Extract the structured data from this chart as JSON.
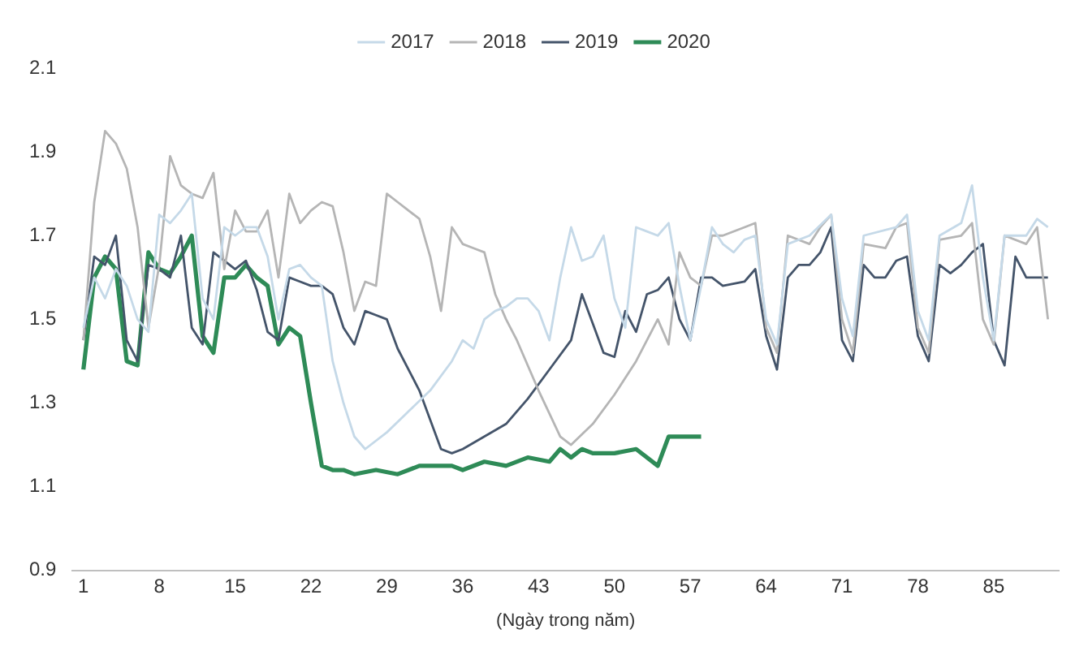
{
  "chart_data": {
    "type": "line",
    "xlabel": "(Ngày trong năm)",
    "xlim": [
      0,
      91
    ],
    "xticks": [
      1,
      8,
      15,
      22,
      29,
      36,
      43,
      50,
      57,
      64,
      71,
      78,
      85
    ],
    "ylim": [
      0.9,
      2.1
    ],
    "yticks": [
      0.9,
      1.1,
      1.3,
      1.5,
      1.7,
      1.9,
      2.1
    ],
    "grid": false,
    "legend": "top",
    "marker": "none",
    "line_style": "solid",
    "series": [
      {
        "name": "2017",
        "color": "#c5d9e8",
        "x": [
          1,
          2,
          3,
          4,
          5,
          6,
          7,
          8,
          9,
          10,
          11,
          12,
          13,
          14,
          15,
          16,
          17,
          18,
          19,
          20,
          21,
          22,
          23,
          24,
          25,
          26,
          27,
          29,
          31,
          33,
          35,
          36,
          37,
          38,
          39,
          40,
          41,
          42,
          43,
          44,
          45,
          46,
          47,
          48,
          49,
          50,
          51,
          52,
          53,
          54,
          55,
          56,
          57,
          58,
          59,
          60,
          61,
          62,
          63,
          64,
          65,
          66,
          68,
          70,
          71,
          72,
          73,
          76,
          77,
          78,
          79,
          80,
          82,
          83,
          84,
          85,
          86,
          88,
          89,
          90
        ],
        "values": [
          1.48,
          1.6,
          1.55,
          1.62,
          1.58,
          1.5,
          1.47,
          1.75,
          1.73,
          1.76,
          1.8,
          1.55,
          1.5,
          1.72,
          1.7,
          1.72,
          1.72,
          1.65,
          1.5,
          1.62,
          1.63,
          1.6,
          1.58,
          1.4,
          1.3,
          1.22,
          1.19,
          1.23,
          1.28,
          1.33,
          1.4,
          1.45,
          1.43,
          1.5,
          1.52,
          1.53,
          1.55,
          1.55,
          1.52,
          1.45,
          1.6,
          1.72,
          1.64,
          1.65,
          1.7,
          1.55,
          1.48,
          1.72,
          1.71,
          1.7,
          1.73,
          1.58,
          1.45,
          1.58,
          1.72,
          1.68,
          1.66,
          1.69,
          1.7,
          1.5,
          1.44,
          1.68,
          1.7,
          1.75,
          1.55,
          1.46,
          1.7,
          1.72,
          1.75,
          1.52,
          1.45,
          1.7,
          1.73,
          1.82,
          1.6,
          1.45,
          1.7,
          1.7,
          1.74,
          1.72
        ]
      },
      {
        "name": "2018",
        "color": "#b5b5b5",
        "x": [
          1,
          2,
          3,
          4,
          5,
          6,
          7,
          8,
          9,
          10,
          11,
          12,
          13,
          14,
          15,
          16,
          17,
          18,
          19,
          20,
          21,
          22,
          23,
          24,
          25,
          26,
          27,
          28,
          29,
          30,
          31,
          32,
          33,
          34,
          35,
          36,
          37,
          38,
          39,
          40,
          41,
          43,
          45,
          46,
          48,
          50,
          52,
          54,
          55,
          56,
          57,
          58,
          59,
          60,
          62,
          63,
          64,
          65,
          66,
          68,
          69,
          70,
          71,
          72,
          73,
          75,
          76,
          77,
          78,
          79,
          80,
          82,
          83,
          84,
          85,
          86,
          88,
          89,
          90
        ],
        "values": [
          1.45,
          1.78,
          1.95,
          1.92,
          1.86,
          1.72,
          1.48,
          1.63,
          1.89,
          1.82,
          1.8,
          1.79,
          1.85,
          1.62,
          1.76,
          1.71,
          1.71,
          1.76,
          1.6,
          1.8,
          1.73,
          1.76,
          1.78,
          1.77,
          1.66,
          1.52,
          1.59,
          1.58,
          1.8,
          1.78,
          1.76,
          1.74,
          1.65,
          1.52,
          1.72,
          1.68,
          1.67,
          1.66,
          1.56,
          1.5,
          1.45,
          1.33,
          1.22,
          1.2,
          1.25,
          1.32,
          1.4,
          1.5,
          1.44,
          1.66,
          1.6,
          1.58,
          1.7,
          1.7,
          1.72,
          1.73,
          1.48,
          1.42,
          1.7,
          1.68,
          1.72,
          1.75,
          1.5,
          1.42,
          1.68,
          1.67,
          1.72,
          1.73,
          1.48,
          1.42,
          1.69,
          1.7,
          1.73,
          1.5,
          1.44,
          1.7,
          1.68,
          1.72,
          1.5
        ]
      },
      {
        "name": "2019",
        "color": "#44546a",
        "x": [
          1,
          2,
          3,
          4,
          5,
          6,
          7,
          8,
          9,
          10,
          11,
          12,
          13,
          14,
          15,
          16,
          17,
          18,
          19,
          20,
          21,
          22,
          23,
          24,
          25,
          26,
          27,
          28,
          29,
          30,
          32,
          34,
          35,
          36,
          38,
          40,
          42,
          44,
          46,
          47,
          48,
          49,
          50,
          51,
          52,
          53,
          54,
          55,
          56,
          57,
          58,
          59,
          60,
          62,
          63,
          64,
          65,
          66,
          67,
          68,
          69,
          70,
          71,
          72,
          73,
          74,
          75,
          76,
          77,
          78,
          79,
          80,
          81,
          82,
          83,
          84,
          85,
          86,
          87,
          88,
          89,
          90
        ],
        "values": [
          1.45,
          1.65,
          1.63,
          1.7,
          1.45,
          1.4,
          1.63,
          1.62,
          1.6,
          1.7,
          1.48,
          1.44,
          1.66,
          1.64,
          1.62,
          1.64,
          1.57,
          1.47,
          1.45,
          1.6,
          1.59,
          1.58,
          1.58,
          1.56,
          1.48,
          1.44,
          1.52,
          1.51,
          1.5,
          1.43,
          1.33,
          1.19,
          1.18,
          1.19,
          1.22,
          1.25,
          1.31,
          1.38,
          1.45,
          1.56,
          1.49,
          1.42,
          1.41,
          1.52,
          1.47,
          1.56,
          1.57,
          1.6,
          1.5,
          1.45,
          1.6,
          1.6,
          1.58,
          1.59,
          1.62,
          1.46,
          1.38,
          1.6,
          1.63,
          1.63,
          1.66,
          1.72,
          1.45,
          1.4,
          1.63,
          1.6,
          1.6,
          1.64,
          1.65,
          1.46,
          1.4,
          1.63,
          1.61,
          1.63,
          1.66,
          1.68,
          1.45,
          1.39,
          1.65,
          1.6,
          1.6,
          1.6
        ]
      },
      {
        "name": "2020",
        "color": "#2e8b57",
        "x": [
          1,
          2,
          3,
          4,
          5,
          6,
          7,
          8,
          9,
          10,
          11,
          12,
          13,
          14,
          15,
          16,
          17,
          18,
          19,
          20,
          21,
          22,
          23,
          24,
          25,
          26,
          28,
          30,
          32,
          34,
          35,
          36,
          38,
          40,
          42,
          44,
          45,
          46,
          47,
          48,
          50,
          52,
          54,
          55,
          56,
          57,
          58
        ],
        "values": [
          1.38,
          1.6,
          1.65,
          1.62,
          1.4,
          1.39,
          1.66,
          1.62,
          1.61,
          1.65,
          1.7,
          1.46,
          1.42,
          1.6,
          1.6,
          1.63,
          1.6,
          1.58,
          1.44,
          1.48,
          1.46,
          1.3,
          1.15,
          1.14,
          1.14,
          1.13,
          1.14,
          1.13,
          1.15,
          1.15,
          1.15,
          1.14,
          1.16,
          1.15,
          1.17,
          1.16,
          1.19,
          1.17,
          1.19,
          1.18,
          1.18,
          1.19,
          1.15,
          1.22,
          1.22,
          1.22,
          1.22
        ]
      }
    ]
  }
}
